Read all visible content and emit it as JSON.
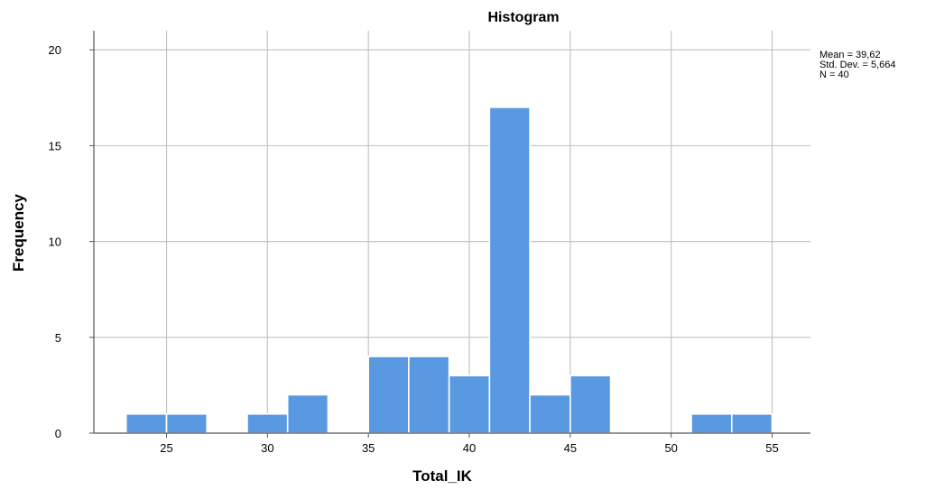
{
  "chart_data": {
    "type": "bar",
    "title": "Histogram",
    "xlabel": "Total_IK",
    "ylabel": "Frequency",
    "xlim": [
      21.4,
      56.9
    ],
    "ylim": [
      0,
      21
    ],
    "x_ticks": [
      25,
      30,
      35,
      40,
      45,
      50,
      55
    ],
    "y_ticks": [
      0,
      5,
      10,
      15,
      20
    ],
    "grid": true,
    "bar_color": "#5899E2",
    "bins": [
      {
        "start": 23,
        "end": 25,
        "count": 1
      },
      {
        "start": 25,
        "end": 27,
        "count": 1
      },
      {
        "start": 27,
        "end": 29,
        "count": 0
      },
      {
        "start": 29,
        "end": 31,
        "count": 1
      },
      {
        "start": 31,
        "end": 33,
        "count": 2
      },
      {
        "start": 33,
        "end": 35,
        "count": 0
      },
      {
        "start": 35,
        "end": 37,
        "count": 4
      },
      {
        "start": 37,
        "end": 39,
        "count": 4
      },
      {
        "start": 39,
        "end": 41,
        "count": 3
      },
      {
        "start": 41,
        "end": 43,
        "count": 17
      },
      {
        "start": 43,
        "end": 45,
        "count": 2
      },
      {
        "start": 45,
        "end": 47,
        "count": 3
      },
      {
        "start": 47,
        "end": 49,
        "count": 0
      },
      {
        "start": 49,
        "end": 51,
        "count": 0
      },
      {
        "start": 51,
        "end": 53,
        "count": 1
      },
      {
        "start": 53,
        "end": 55,
        "count": 1
      }
    ],
    "stats": {
      "mean": "Mean = 39,62",
      "std": "Std. Dev. = 5,664",
      "n": "N = 40"
    }
  }
}
